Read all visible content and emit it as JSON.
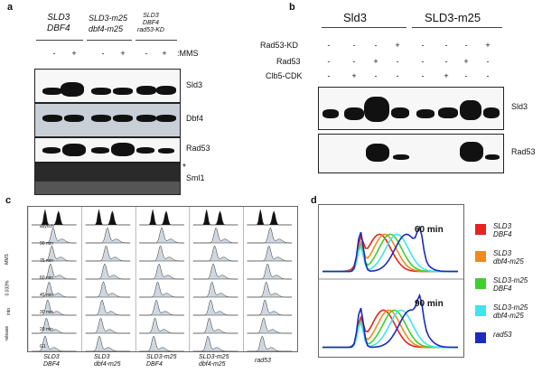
{
  "panel_a": {
    "letter": "a",
    "strains": [
      {
        "line1": "SLD3",
        "line2": "DBF4",
        "line3": ""
      },
      {
        "line1": "SLD3-m25",
        "line2": "dbf4-m25",
        "line3": ""
      },
      {
        "line1": "SLD3",
        "line2": "DBF4",
        "line3": "rad53-KD"
      }
    ],
    "mms_signs": [
      "-",
      "+",
      "-",
      "+",
      "-",
      "+"
    ],
    "mms_label": ":MMS",
    "rows": [
      "Sld3",
      "Dbf4",
      "Rad53",
      "Sml1"
    ],
    "asterisk": "*"
  },
  "panel_b": {
    "letter": "b",
    "group1": "Sld3",
    "group2": "SLD3-m25",
    "row_labels": [
      "Rad53-KD",
      "Rad53",
      "Clb5-CDK"
    ],
    "signs": [
      [
        "-",
        "-",
        "-",
        "+",
        "-",
        "-",
        "-",
        "+"
      ],
      [
        "-",
        "-",
        "+",
        "-",
        "-",
        "-",
        "+",
        "-"
      ],
      [
        "-",
        "+",
        "-",
        "-",
        "-",
        "+",
        "-",
        "-"
      ]
    ],
    "blots": [
      "Sld3",
      "Rad53"
    ]
  },
  "panel_c": {
    "letter": "c",
    "timepoints": [
      "asynch",
      "90 min",
      "75 min",
      "60 min",
      "45 min",
      "30 min",
      "20 min",
      "G1"
    ],
    "side_labels": [
      "MMS",
      "0.033%",
      "into",
      "release"
    ],
    "strains": [
      {
        "line1": "SLD3",
        "line2": "DBF4"
      },
      {
        "line1": "SLD3",
        "line2": "dbf4-m25"
      },
      {
        "line1": "SLD3-m25",
        "line2": "DBF4"
      },
      {
        "line1": "SLD3-m25",
        "line2": "dbf4-m25"
      },
      {
        "line1": "rad53",
        "line2": ""
      }
    ]
  },
  "panel_d": {
    "letter": "d",
    "plots": [
      {
        "label": "60 min"
      },
      {
        "label": "90 min"
      }
    ],
    "legend": [
      {
        "line1": "SLD3",
        "line2": "DBF4",
        "color": "#e8221e"
      },
      {
        "line1": "SLD3",
        "line2": "dbf4-m25",
        "color": "#f08a1c"
      },
      {
        "line1": "SLD3-m25",
        "line2": "DBF4",
        "color": "#3fcf2c"
      },
      {
        "line1": "SLD3-m25",
        "line2": "dbf4-m25",
        "color": "#3fe4ee"
      },
      {
        "line1": "rad53",
        "line2": "",
        "color": "#1b2ac0"
      }
    ]
  }
}
